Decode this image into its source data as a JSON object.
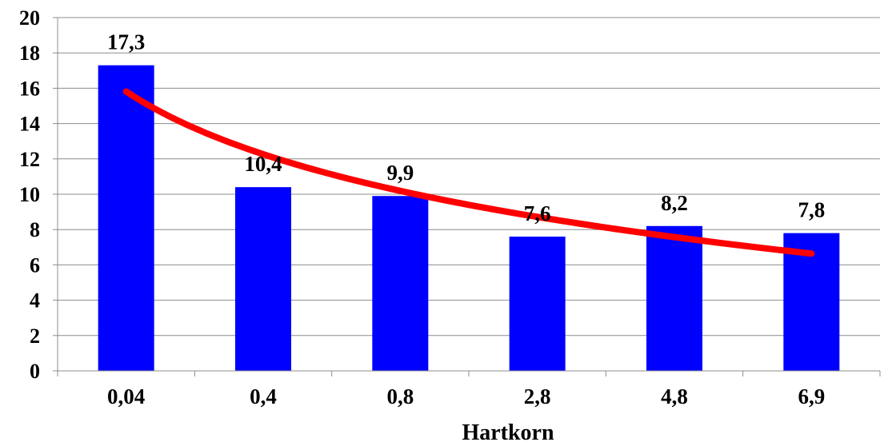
{
  "chart_data": {
    "type": "bar",
    "categories": [
      "0,04",
      "0,4",
      "0,8",
      "2,8",
      "4,8",
      "6,9"
    ],
    "values": [
      17.3,
      10.4,
      9.9,
      7.6,
      8.2,
      7.8
    ],
    "value_labels": [
      "17,3",
      "10,4",
      "9,9",
      "7,6",
      "8,2",
      "7,8"
    ],
    "xlabel": "Hartkorn",
    "ylabel": "",
    "ylim": [
      0,
      20
    ],
    "yticks": [
      0,
      2,
      4,
      6,
      8,
      10,
      12,
      14,
      16,
      18,
      20
    ],
    "grid": true,
    "legend": "none",
    "bar_color": "#0000ff",
    "trendline": {
      "type": "logarithmic",
      "color": "#ff0000",
      "values": [
        15.8,
        12.2,
        10.3,
        8.8,
        7.5,
        6.6
      ]
    }
  }
}
